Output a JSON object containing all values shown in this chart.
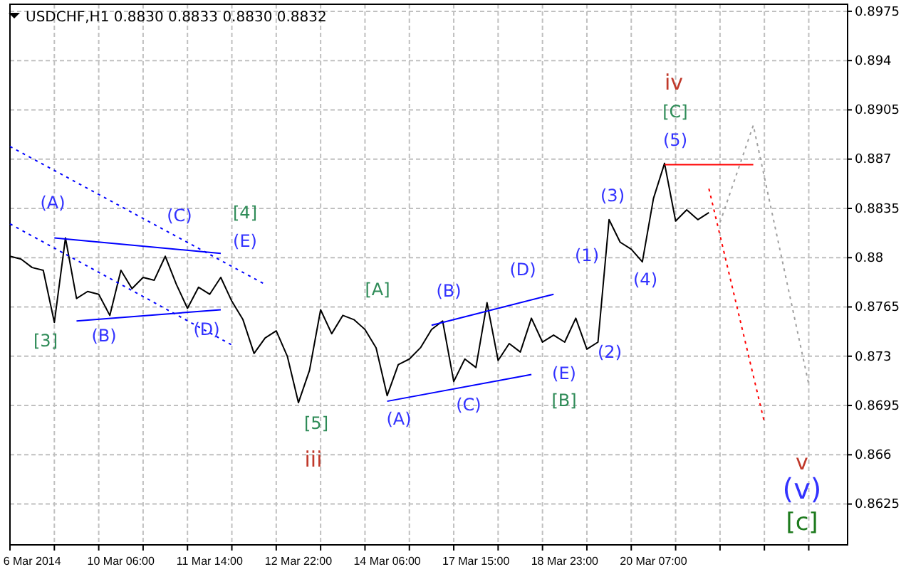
{
  "chart_data": {
    "type": "line",
    "title": "USDCHF,H1  0.8830 0.8833 0.8830 0.8832",
    "categories": [
      null,
      null,
      "6 Mar 2014",
      null,
      null,
      null,
      null,
      null,
      null,
      null,
      "10 Mar 06:00",
      null,
      null,
      null,
      null,
      null,
      null,
      null,
      "11 Mar 14:00",
      null,
      null,
      null,
      null,
      null,
      null,
      null,
      "12 Mar 22:00",
      null,
      null,
      null,
      null,
      null,
      null,
      null,
      "14 Mar 06:00",
      null,
      null,
      null,
      null,
      null,
      null,
      null,
      "17 Mar 15:00",
      null,
      null,
      null,
      null,
      null,
      null,
      null,
      "18 Mar 23:00",
      null,
      null,
      null,
      null,
      null,
      null,
      null,
      "20 Mar 07:00",
      null,
      null,
      null,
      null,
      null,
      null,
      null,
      null,
      null,
      null,
      null,
      null,
      null,
      null,
      null,
      null,
      null
    ],
    "ylim": [
      0.8596,
      0.898
    ],
    "yticks": [
      0.8625,
      0.866,
      0.8695,
      0.873,
      0.8765,
      0.88,
      0.8835,
      0.887,
      0.8905,
      0.894,
      0.8975
    ],
    "grid": true,
    "legend": false,
    "marker": "none",
    "series": [
      {
        "color": "#000000",
        "line_style": "solid",
        "values": [
          0.8801,
          0.8799,
          0.8793,
          0.8791,
          0.8754,
          0.8814,
          0.8771,
          0.8776,
          0.8774,
          0.8759,
          0.8791,
          0.8778,
          0.8786,
          0.8784,
          0.8801,
          0.8781,
          0.8764,
          0.8779,
          0.8774,
          0.8786,
          0.8769,
          0.8756,
          0.8732,
          0.8743,
          0.8748,
          0.873,
          0.8697,
          0.872,
          0.8763,
          0.8746,
          0.8759,
          0.8756,
          0.8749,
          0.8736,
          0.8702,
          0.8724,
          0.8728,
          0.8736,
          0.8749,
          0.8755,
          0.8712,
          0.8728,
          0.8722,
          0.8768,
          0.8727,
          0.8739,
          0.8733,
          0.8757,
          0.874,
          0.8745,
          0.874,
          0.8757,
          0.8735,
          0.874,
          0.8827,
          0.8811,
          0.8806,
          0.8797,
          0.8842,
          0.8867,
          0.8826,
          0.8834,
          0.8827,
          0.8832,
          null,
          null,
          null,
          null,
          null,
          null,
          null,
          null,
          null,
          null,
          null,
          null
        ]
      },
      {
        "color": "#0000ff",
        "line_style": "dotted",
        "values": [
          0.8879,
          null,
          null,
          null,
          null,
          null,
          null,
          null,
          null,
          null,
          null,
          null,
          null,
          null,
          null,
          null,
          null,
          null,
          null,
          null,
          null,
          null,
          null,
          0.8781,
          null,
          null,
          null,
          null,
          null,
          null,
          null,
          null,
          null,
          null,
          null,
          null,
          null,
          null,
          null,
          null,
          null,
          null,
          null,
          null,
          null,
          null,
          null,
          null,
          null,
          null,
          null,
          null,
          null,
          null,
          null,
          null,
          null,
          null,
          null,
          null,
          null,
          null,
          null,
          null,
          null,
          null,
          null,
          null,
          null,
          null,
          null,
          null,
          null,
          null,
          null,
          null
        ]
      },
      {
        "color": "#0000ff",
        "line_style": "dotted",
        "values": [
          0.8824,
          null,
          null,
          null,
          null,
          null,
          null,
          null,
          null,
          null,
          null,
          null,
          null,
          null,
          null,
          null,
          null,
          null,
          null,
          null,
          0.8738,
          null,
          null,
          null,
          null,
          null,
          null,
          null,
          null,
          null,
          null,
          null,
          null,
          null,
          null,
          null,
          null,
          null,
          null,
          null,
          null,
          null,
          null,
          null,
          null,
          null,
          null,
          null,
          null,
          null,
          null,
          null,
          null,
          null,
          null,
          null,
          null,
          null,
          null,
          null,
          null,
          null,
          null,
          null,
          null,
          null,
          null,
          null,
          null,
          null,
          null,
          null,
          null,
          null,
          null,
          null
        ]
      },
      {
        "color": "#0000ff",
        "line_style": "solid",
        "values": [
          null,
          null,
          null,
          null,
          0.8814,
          null,
          null,
          null,
          null,
          null,
          null,
          null,
          null,
          null,
          null,
          null,
          null,
          null,
          null,
          0.8803,
          null,
          null,
          null,
          null,
          null,
          null,
          null,
          null,
          null,
          null,
          null,
          null,
          null,
          null,
          null,
          null,
          null,
          null,
          null,
          null,
          null,
          null,
          null,
          null,
          null,
          null,
          null,
          null,
          null,
          null,
          null,
          null,
          null,
          null,
          null,
          null,
          null,
          null,
          null,
          null,
          null,
          null,
          null,
          null,
          null,
          null,
          null,
          null,
          null,
          null,
          null,
          null,
          null,
          null,
          null,
          null
        ]
      },
      {
        "color": "#0000ff",
        "line_style": "solid",
        "values": [
          null,
          null,
          null,
          null,
          null,
          null,
          0.8755,
          null,
          null,
          null,
          null,
          null,
          null,
          null,
          null,
          null,
          null,
          null,
          null,
          0.8763,
          null,
          null,
          null,
          null,
          null,
          null,
          null,
          null,
          null,
          null,
          null,
          null,
          null,
          null,
          null,
          null,
          null,
          null,
          null,
          null,
          null,
          null,
          null,
          null,
          null,
          null,
          null,
          null,
          null,
          null,
          null,
          null,
          null,
          null,
          null,
          null,
          null,
          null,
          null,
          null,
          null,
          null,
          null,
          null,
          null,
          null,
          null,
          null,
          null,
          null,
          null,
          null,
          null,
          null,
          null,
          null
        ]
      },
      {
        "color": "#0000ff",
        "line_style": "solid",
        "values": [
          null,
          null,
          null,
          null,
          null,
          null,
          null,
          null,
          null,
          null,
          null,
          null,
          null,
          null,
          null,
          null,
          null,
          null,
          null,
          null,
          null,
          null,
          null,
          null,
          null,
          null,
          null,
          null,
          null,
          null,
          null,
          null,
          null,
          null,
          null,
          null,
          null,
          null,
          0.8752,
          null,
          null,
          null,
          null,
          null,
          null,
          null,
          null,
          null,
          null,
          0.8774,
          null,
          null,
          null,
          null,
          null,
          null,
          null,
          null,
          null,
          null,
          null,
          null,
          null,
          null,
          null,
          null,
          null,
          null,
          null,
          null,
          null,
          null,
          null,
          null,
          null,
          null
        ]
      },
      {
        "color": "#0000ff",
        "line_style": "solid",
        "values": [
          null,
          null,
          null,
          null,
          null,
          null,
          null,
          null,
          null,
          null,
          null,
          null,
          null,
          null,
          null,
          null,
          null,
          null,
          null,
          null,
          null,
          null,
          null,
          null,
          null,
          null,
          null,
          null,
          null,
          null,
          null,
          null,
          null,
          null,
          0.8698,
          null,
          null,
          null,
          null,
          null,
          null,
          null,
          null,
          null,
          null,
          null,
          null,
          0.8717,
          null,
          null,
          null,
          null,
          null,
          null,
          null,
          null,
          null,
          null,
          null,
          null,
          null,
          null,
          null,
          null,
          null,
          null,
          null,
          null,
          null,
          null,
          null,
          null,
          null,
          null,
          null,
          null
        ]
      },
      {
        "color": "#ff0000",
        "line_style": "solid",
        "values": [
          null,
          null,
          null,
          null,
          null,
          null,
          null,
          null,
          null,
          null,
          null,
          null,
          null,
          null,
          null,
          null,
          null,
          null,
          null,
          null,
          null,
          null,
          null,
          null,
          null,
          null,
          null,
          null,
          null,
          null,
          null,
          null,
          null,
          null,
          null,
          null,
          null,
          null,
          null,
          null,
          null,
          null,
          null,
          null,
          null,
          null,
          null,
          null,
          null,
          null,
          null,
          null,
          null,
          null,
          null,
          null,
          null,
          null,
          null,
          0.8866,
          null,
          null,
          null,
          null,
          null,
          null,
          null,
          0.8866,
          null,
          null,
          null,
          null,
          null,
          null,
          null,
          null
        ]
      },
      {
        "color": "#ff0000",
        "line_style": "dotted",
        "values": [
          null,
          null,
          null,
          null,
          null,
          null,
          null,
          null,
          null,
          null,
          null,
          null,
          null,
          null,
          null,
          null,
          null,
          null,
          null,
          null,
          null,
          null,
          null,
          null,
          null,
          null,
          null,
          null,
          null,
          null,
          null,
          null,
          null,
          null,
          null,
          null,
          null,
          null,
          null,
          null,
          null,
          null,
          null,
          null,
          null,
          null,
          null,
          null,
          null,
          null,
          null,
          null,
          null,
          null,
          null,
          null,
          null,
          null,
          null,
          null,
          null,
          null,
          null,
          0.8849,
          null,
          null,
          null,
          null,
          0.8683,
          null,
          null,
          null,
          null,
          null,
          null,
          null
        ]
      },
      {
        "color": "#a0a0a0",
        "line_style": "dotted",
        "values": [
          null,
          null,
          null,
          null,
          null,
          null,
          null,
          null,
          null,
          null,
          null,
          null,
          null,
          null,
          null,
          null,
          null,
          null,
          null,
          null,
          null,
          null,
          null,
          null,
          null,
          null,
          null,
          null,
          null,
          null,
          null,
          null,
          null,
          null,
          null,
          null,
          null,
          null,
          null,
          null,
          null,
          null,
          null,
          null,
          null,
          null,
          null,
          null,
          null,
          null,
          null,
          null,
          null,
          null,
          null,
          null,
          null,
          null,
          null,
          null,
          null,
          null,
          null,
          null,
          0.8825,
          null,
          null,
          0.8894,
          null,
          null,
          null,
          null,
          0.871,
          null,
          null,
          null
        ]
      }
    ],
    "annotations": [
      "(A)",
      "[3]",
      {
        "text": "(B)",
        "y": 0.8758
      },
      "(C)",
      "[4]",
      "(E)",
      "(D)",
      "[A]",
      "(B)",
      "(D)",
      "(1)",
      "[5]",
      "iii",
      "(A)",
      "(C)",
      "(E)",
      "[B]",
      "(2)",
      "(3)",
      "(4)",
      "(5)",
      "[C]",
      "iv",
      "v",
      "(v)",
      "[c]"
    ]
  }
}
